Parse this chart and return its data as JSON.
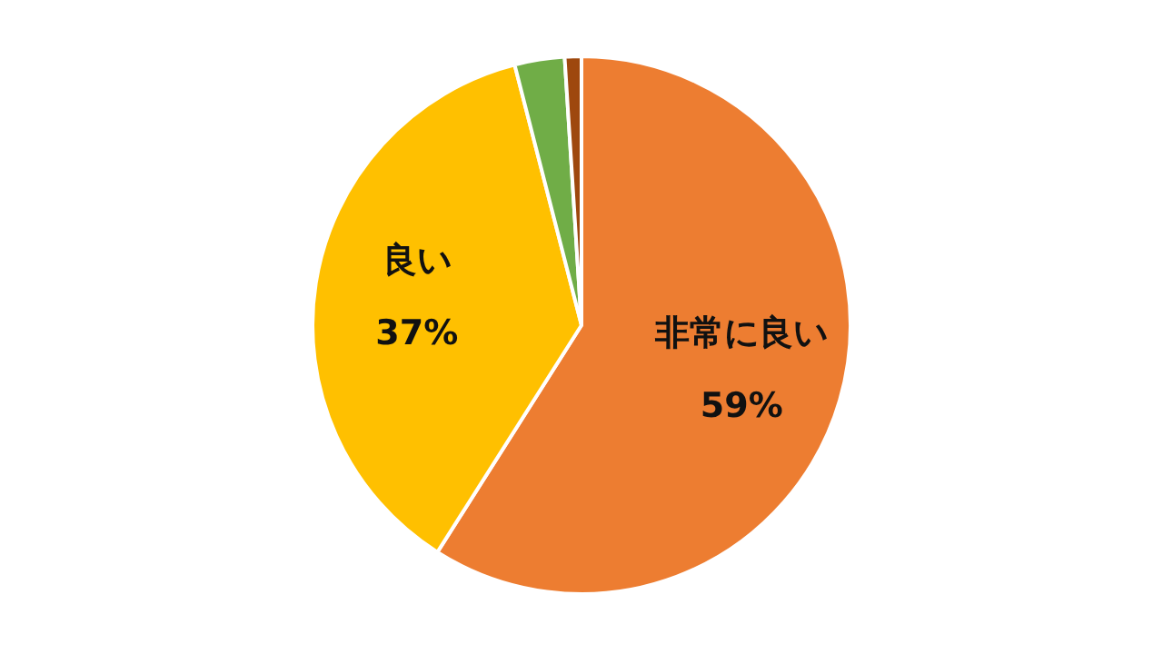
{
  "chart_data": {
    "type": "pie",
    "categories": [
      "非常に良い",
      "良い",
      null,
      null
    ],
    "values": [
      59,
      37,
      3,
      1
    ],
    "value_labels": [
      "59%",
      "37%",
      null,
      null
    ],
    "colors": [
      "#ed7d31",
      "#ffc000",
      "#70ad47",
      "#9e480e"
    ],
    "legend": false
  }
}
